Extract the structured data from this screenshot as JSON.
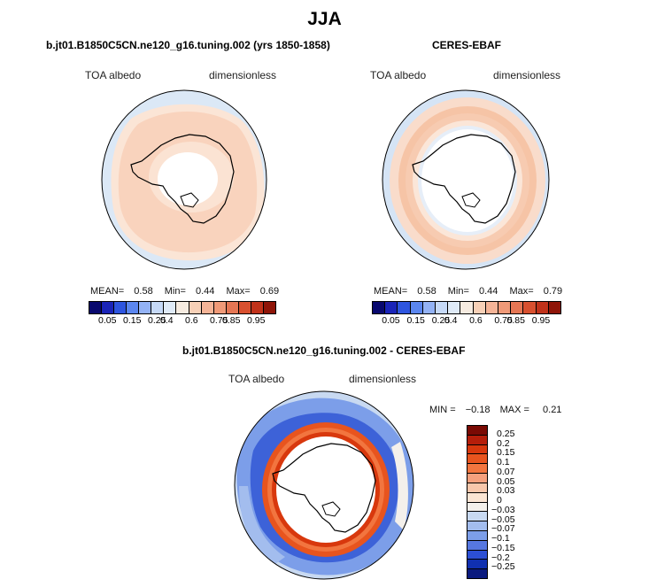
{
  "title": "JJA",
  "panels": [
    {
      "title": "b.jt01.B1850C5CN.ne120_g16.tuning.002 (yrs 1850-1858)",
      "variable": "TOA albedo",
      "units": "dimensionless",
      "stats": {
        "mean_label": "MEAN=",
        "mean": "0.58",
        "min_label": "Min=",
        "min": "0.44",
        "max_label": "Max=",
        "max": "0.69"
      }
    },
    {
      "title": "CERES-EBAF",
      "variable": "TOA albedo",
      "units": "dimensionless",
      "stats": {
        "mean_label": "MEAN=",
        "mean": "0.58",
        "min_label": "Min=",
        "min": "0.44",
        "max_label": "Max=",
        "max": "0.79"
      }
    },
    {
      "title": "b.jt01.B1850C5CN.ne120_g16.tuning.002 - CERES-EBAF",
      "variable": "TOA albedo",
      "units": "dimensionless",
      "stats": {
        "min_label": "MIN =",
        "min": "−0.18",
        "max_label": "MAX =",
        "max": "0.21"
      }
    }
  ],
  "colorbar_abs": {
    "labels": [
      "0.05",
      "0.15",
      "0.25",
      "0.4",
      "0.6",
      "0.75",
      "0.85",
      "0.95"
    ],
    "colors": [
      "#08086e",
      "#1a24b8",
      "#2e55df",
      "#5b86ef",
      "#93b2f5",
      "#c6d9f7",
      "#dfeaf7",
      "#f6ebe0",
      "#f7d0b7",
      "#f5b497",
      "#f09a78",
      "#e57654",
      "#d8502f",
      "#c0321a",
      "#8f1508"
    ]
  },
  "colorbar_diff": {
    "labels": [
      "0.25",
      "0.2",
      "0.15",
      "0.1",
      "0.07",
      "0.05",
      "0.03",
      "0",
      "−0.03",
      "−0.05",
      "−0.07",
      "−0.1",
      "−0.15",
      "−0.2",
      "−0.25"
    ],
    "colors": [
      "#7a0a04",
      "#b51e0a",
      "#d8380d",
      "#e8541e",
      "#f2753f",
      "#f5a07d",
      "#f8c7ab",
      "#fbe5d3",
      "#f4f0eb",
      "#c8d9f1",
      "#a3bdee",
      "#7c9ee9",
      "#5677e0",
      "#2c4fd4",
      "#1030b0",
      "#0a1a7e"
    ]
  }
}
